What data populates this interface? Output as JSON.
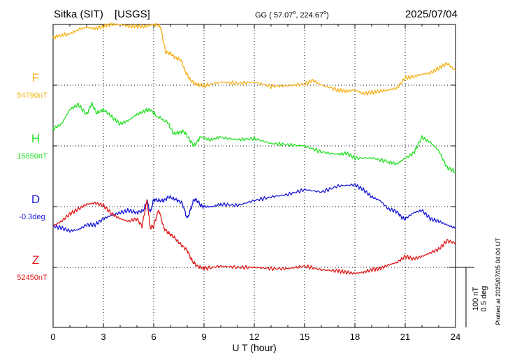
{
  "header": {
    "station": "Sitka (SIT)",
    "source": "[USGS]",
    "coords_prefix": "GG ( 57.07",
    "coords_mid": ", 224.67",
    "coords_suffix": ")",
    "date": "2025/07/04"
  },
  "side_note": "Plotted at 2025/07/05 04:04 UT",
  "scale_bar": {
    "nt": "100 nT",
    "deg": "0.5 deg"
  },
  "colors": {
    "F": "#f5b21a",
    "H": "#22e022",
    "D": "#1a1ad6",
    "Z": "#e21a1a",
    "axis": "#000000"
  },
  "chart_data": {
    "type": "line",
    "xlabel": "U T (hour)",
    "xlim": [
      0,
      24
    ],
    "xticks": [
      "0",
      "3",
      "6",
      "9",
      "12",
      "15",
      "18",
      "21",
      "24"
    ],
    "series": [
      {
        "name": "F",
        "baseline_label": "54790nT",
        "baseline_row": 0,
        "x": [
          0,
          0.3,
          0.8,
          1.5,
          2.0,
          2.5,
          3.0,
          3.5,
          4.0,
          4.5,
          5.0,
          5.5,
          6.0,
          6.4,
          6.7,
          7.0,
          7.3,
          7.6,
          7.9,
          8.2,
          8.5,
          9.0,
          10,
          11,
          12,
          13,
          14,
          15,
          15.5,
          16,
          17,
          17.5,
          18,
          18.5,
          19,
          19.5,
          20,
          20.5,
          21,
          21.5,
          22,
          22.5,
          23,
          23.5,
          24
        ],
        "y": [
          0.78,
          0.81,
          0.84,
          0.92,
          0.95,
          0.93,
          0.97,
          1.0,
          1.0,
          0.97,
          0.97,
          0.97,
          1.0,
          0.97,
          0.55,
          0.52,
          0.45,
          0.42,
          0.22,
          0.08,
          0.02,
          -0.01,
          0.05,
          0.03,
          0.05,
          -0.02,
          -0.01,
          0.02,
          0.08,
          0.0,
          -0.08,
          -0.1,
          -0.08,
          -0.14,
          -0.12,
          -0.1,
          -0.08,
          -0.05,
          0.12,
          0.14,
          0.18,
          0.2,
          0.28,
          0.36,
          0.24
        ]
      },
      {
        "name": "H",
        "baseline_label": "15850nT",
        "baseline_row": 1,
        "x": [
          0,
          0.5,
          1.0,
          1.5,
          2.0,
          2.3,
          2.6,
          3.0,
          3.5,
          4.0,
          4.5,
          5.0,
          5.5,
          5.8,
          6.2,
          6.8,
          7.2,
          7.5,
          7.8,
          8.1,
          8.4,
          8.8,
          9.3,
          10,
          11,
          12,
          13,
          14,
          15,
          16,
          17,
          17.5,
          18,
          19,
          20,
          20.5,
          21,
          21.5,
          22,
          22.5,
          23,
          23.5,
          24
        ],
        "y": [
          0.28,
          0.36,
          0.6,
          0.68,
          0.52,
          0.7,
          0.54,
          0.6,
          0.48,
          0.36,
          0.42,
          0.52,
          0.58,
          0.6,
          0.48,
          0.4,
          0.2,
          0.22,
          0.24,
          0.12,
          0.0,
          0.15,
          0.1,
          0.14,
          0.1,
          0.12,
          0.04,
          0.02,
          0.0,
          -0.1,
          -0.14,
          -0.12,
          -0.2,
          -0.2,
          -0.26,
          -0.3,
          -0.2,
          -0.12,
          0.14,
          0.06,
          -0.08,
          -0.36,
          -0.42
        ]
      },
      {
        "name": "D",
        "baseline_label": "-0.3deg",
        "baseline_row": 2,
        "x": [
          0,
          0.5,
          1.0,
          1.5,
          2.0,
          2.5,
          3.0,
          3.5,
          4.0,
          4.5,
          5.0,
          5.4,
          5.6,
          5.8,
          6.0,
          6.3,
          6.6,
          6.9,
          7.3,
          7.7,
          8.0,
          8.2,
          8.4,
          8.6,
          8.8,
          9.0,
          9.5,
          10,
          11,
          12,
          13,
          14,
          15,
          16,
          17,
          18,
          18.5,
          19,
          19.5,
          20,
          20.5,
          20.8,
          21,
          21.5,
          22,
          22.5,
          23,
          23.5,
          24
        ],
        "y": [
          -0.32,
          -0.35,
          -0.4,
          -0.38,
          -0.3,
          -0.3,
          -0.2,
          -0.14,
          -0.1,
          -0.06,
          -0.1,
          -0.06,
          0.1,
          -0.1,
          0.12,
          0.1,
          0.1,
          0.16,
          0.12,
          0.06,
          -0.2,
          -0.05,
          0.12,
          0.1,
          0.02,
          0.0,
          0.0,
          0.04,
          0.02,
          0.1,
          0.16,
          0.2,
          0.28,
          0.24,
          0.34,
          0.36,
          0.28,
          0.16,
          0.1,
          -0.04,
          -0.08,
          -0.18,
          -0.2,
          -0.1,
          -0.06,
          -0.2,
          -0.24,
          -0.3,
          -0.36
        ]
      },
      {
        "name": "Z",
        "baseline_label": "52450nT",
        "baseline_row": 3,
        "x": [
          0,
          0.5,
          1.0,
          1.5,
          2.0,
          2.5,
          3.0,
          3.5,
          4.0,
          4.5,
          5.0,
          5.3,
          5.6,
          5.8,
          6.0,
          6.3,
          6.6,
          6.9,
          7.2,
          7.6,
          8.0,
          8.3,
          8.6,
          9.0,
          10,
          11,
          12,
          13,
          14,
          15,
          16,
          17,
          17.5,
          18,
          18.5,
          19,
          19.5,
          20,
          20.5,
          21,
          21.5,
          22,
          22.5,
          23,
          23.5,
          24
        ],
        "y": [
          0.68,
          0.76,
          0.88,
          0.96,
          1.04,
          1.06,
          1.02,
          0.88,
          0.8,
          0.76,
          0.8,
          0.68,
          1.1,
          0.65,
          0.68,
          0.95,
          0.65,
          0.56,
          0.5,
          0.38,
          0.28,
          0.1,
          0.02,
          -0.02,
          0.02,
          0.0,
          0.0,
          -0.02,
          -0.02,
          0.02,
          -0.04,
          -0.06,
          -0.08,
          -0.1,
          -0.08,
          -0.04,
          -0.02,
          0.04,
          0.08,
          0.18,
          0.14,
          0.18,
          0.24,
          0.3,
          0.44,
          0.4
        ]
      }
    ],
    "scale": "100 nT / 0.5 deg per bar",
    "grid": true
  }
}
